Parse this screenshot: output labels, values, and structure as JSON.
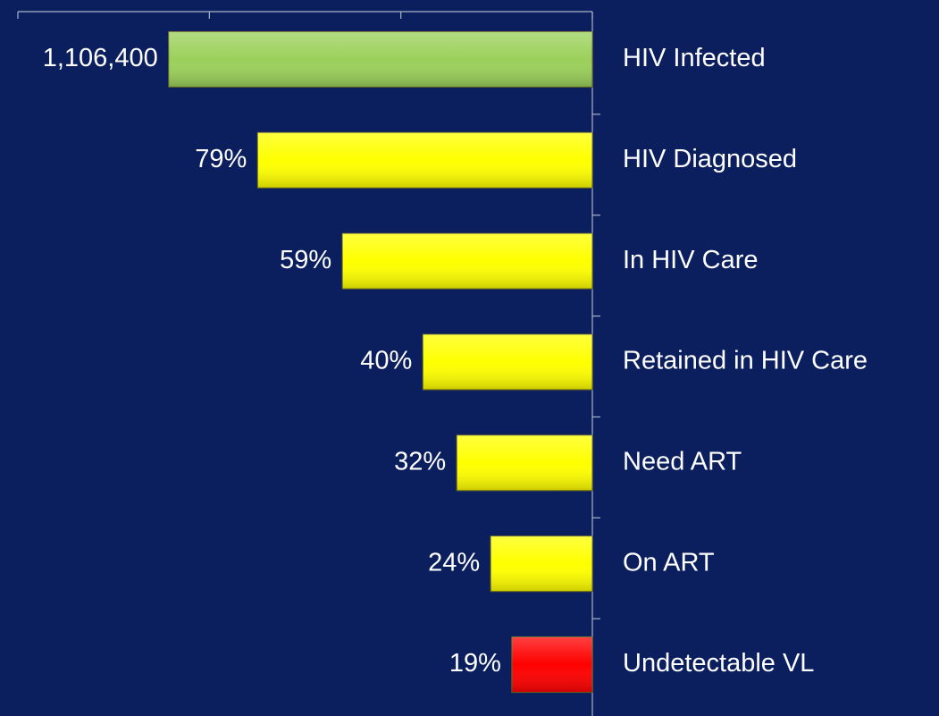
{
  "chart_data": {
    "type": "bar",
    "orientation": "horizontal",
    "x_reversed": true,
    "categories": [
      "HIV Infected",
      "HIV Diagnosed",
      "In HIV Care",
      "Retained in HIV Care",
      "Need ART",
      "On ART",
      "Undetectable VL"
    ],
    "values": [
      1106400,
      874056,
      652776,
      442560,
      354048,
      265536,
      210216
    ],
    "value_labels": [
      "1,106,400",
      "79%",
      "59%",
      "40%",
      "32%",
      "24%",
      "19%"
    ],
    "colors": [
      "#9bd05a",
      "#ffff00",
      "#ffff00",
      "#ffff00",
      "#ffff00",
      "#ffff00",
      "#ff0000"
    ],
    "xlim": [
      0,
      1500000
    ],
    "xticks": [
      0,
      500000,
      1000000,
      1500000
    ]
  }
}
